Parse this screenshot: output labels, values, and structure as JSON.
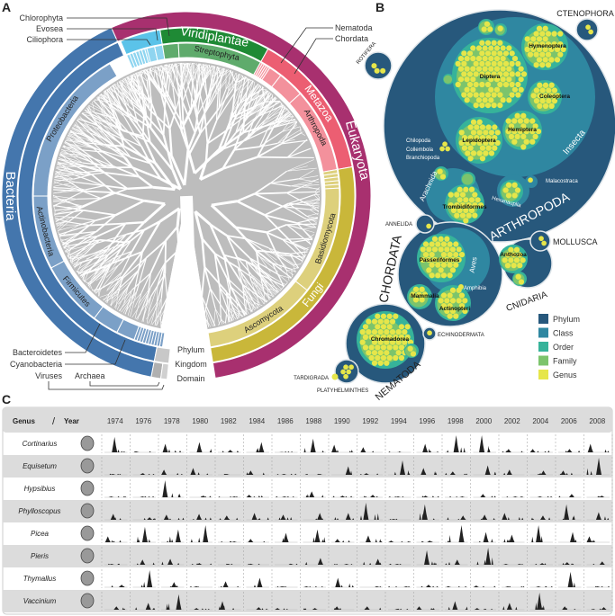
{
  "panels": {
    "a": "A",
    "b": "B",
    "c": "C"
  },
  "panel_a": {
    "domains": [
      {
        "name": "Eukaryota",
        "color": "#a8306f"
      },
      {
        "name": "Bacteria",
        "color": "#4476ad"
      }
    ],
    "kingdoms": [
      {
        "name": "Viridiplantae",
        "color": "#1f8a35"
      },
      {
        "name": "Metazoa",
        "color": "#ec5e72"
      },
      {
        "name": "Fungi",
        "color": "#c9b73a"
      }
    ],
    "phyla": [
      {
        "name": "Streptophyta",
        "color": "#5fab6c"
      },
      {
        "name": "Arthropoda",
        "color": "#f3919c"
      },
      {
        "name": "Basidiomycota",
        "color": "#ddd07c"
      },
      {
        "name": "Ascomycota",
        "color": "#ddd07c"
      },
      {
        "name": "Proteobacteria",
        "color": "#7ba0c7"
      },
      {
        "name": "Actinobacteria",
        "color": "#7ba0c7"
      },
      {
        "name": "Firmicutes",
        "color": "#7ba0c7"
      }
    ],
    "callouts": {
      "chlorophyta": "Chlorophyta",
      "evosea": "Evosea",
      "ciliophora": "Ciliophora",
      "nematoda": "Nematoda",
      "chordata": "Chordata",
      "bacteroidetes": "Bacteroidetes",
      "cyanobacteria": "Cyanobacteria",
      "viruses": "Viruses",
      "archaea": "Archaea"
    },
    "ring_legend": [
      "Phylum",
      "Kingdom",
      "Domain"
    ],
    "tree_color": "#bdbdbd"
  },
  "panel_b": {
    "phyla": [
      "ARTHROPODA",
      "CHORDATA",
      "CNIDARIA",
      "NEMATODA",
      "ROTIFERA",
      "CTENOPHORA",
      "ANNELIDA",
      "MOLLUSCA",
      "ECHINODERMATA",
      "TARDIGRADA",
      "PLATYHELMINTHES"
    ],
    "classes": [
      "Insecta",
      "Arachnida",
      "Hexanauplia",
      "Malacostraca",
      "Chilopoda",
      "Collembola",
      "Branchiopoda",
      "Aves",
      "Amphibia"
    ],
    "orders": [
      "Diptera",
      "Hymenoptera",
      "Coleoptera",
      "Hemiptera",
      "Lepidoptera",
      "Trombidiformes",
      "Passeriformes",
      "Mammalia",
      "Actinopteri",
      "Anthozoa",
      "Chromadorea"
    ],
    "legend": [
      {
        "label": "Phylum",
        "color": "#27587c"
      },
      {
        "label": "Class",
        "color": "#2f87a1"
      },
      {
        "label": "Order",
        "color": "#36b39a"
      },
      {
        "label": "Family",
        "color": "#7cc46c"
      },
      {
        "label": "Genus",
        "color": "#e6e64a"
      }
    ]
  },
  "chart_data": {
    "type": "table",
    "header": {
      "genus": "Genus",
      "separator": "/",
      "year": "Year"
    },
    "years": [
      "1974",
      "1976",
      "1978",
      "1980",
      "1982",
      "1984",
      "1986",
      "1988",
      "1990",
      "1992",
      "1994",
      "1996",
      "1998",
      "2000",
      "2002",
      "2004",
      "2006",
      "2008"
    ],
    "rows": [
      {
        "genus": "Cortinarius",
        "icon": "mushroom-icon",
        "peaks": [
          0.9,
          0.05,
          0.5,
          0.6,
          0.15,
          0.6,
          0.02,
          0.8,
          0.45,
          0.3,
          0.02,
          0.5,
          1.0,
          1.0,
          0.2,
          0.2,
          0.2,
          0.5
        ]
      },
      {
        "genus": "Equisetum",
        "icon": "horsetail-icon",
        "peaks": [
          0.05,
          0.1,
          0.3,
          0.4,
          0.05,
          0.25,
          0.05,
          0.05,
          0.5,
          0.1,
          0.85,
          0.4,
          0.2,
          0.55,
          0.3,
          0.25,
          0.25,
          1.0
        ]
      },
      {
        "genus": "Hypsibius",
        "icon": "tardigrade-icon",
        "peaks": [
          0.05,
          0.05,
          1.0,
          0.1,
          0.05,
          0.15,
          0.05,
          0.35,
          0.1,
          0.15,
          0.05,
          0.1,
          0.05,
          0.2,
          0.05,
          0.05,
          0.2,
          0.1
        ]
      },
      {
        "genus": "Phylloscopus",
        "icon": "bird-icon",
        "peaks": [
          0.35,
          0.15,
          0.3,
          0.35,
          0.25,
          0.4,
          0.3,
          0.4,
          0.4,
          1.0,
          0.05,
          0.9,
          0.25,
          0.3,
          0.4,
          0.25,
          0.9,
          0.45
        ]
      },
      {
        "genus": "Picea",
        "icon": "spruce-icon",
        "peaks": [
          0.35,
          0.9,
          0.75,
          1.0,
          0.05,
          0.2,
          0.55,
          0.75,
          0.2,
          0.4,
          0.1,
          0.1,
          1.0,
          0.6,
          0.45,
          1.0,
          0.6,
          0.35
        ]
      },
      {
        "genus": "Pieris",
        "icon": "butterfly-icon",
        "peaks": [
          0.05,
          0.3,
          0.35,
          0.1,
          0.05,
          0.05,
          0.05,
          0.4,
          0.05,
          0.35,
          0.05,
          0.85,
          0.3,
          1.0,
          0.05,
          0.1,
          0.15,
          0.2
        ]
      },
      {
        "genus": "Thymallus",
        "icon": "fish-icon",
        "peaks": [
          0.15,
          1.0,
          0.3,
          0.05,
          0.35,
          0.55,
          0.05,
          0.05,
          0.55,
          0.05,
          0.05,
          0.15,
          0.05,
          0.1,
          0.05,
          0.05,
          0.9,
          0.05
        ]
      },
      {
        "genus": "Vaccinium",
        "icon": "berry-icon",
        "peaks": [
          0.2,
          0.4,
          0.9,
          0.1,
          0.5,
          0.15,
          0.1,
          0.1,
          0.2,
          0.2,
          0.05,
          0.2,
          0.5,
          0.1,
          0.4,
          1.0,
          0.2,
          0.15
        ]
      }
    ]
  }
}
